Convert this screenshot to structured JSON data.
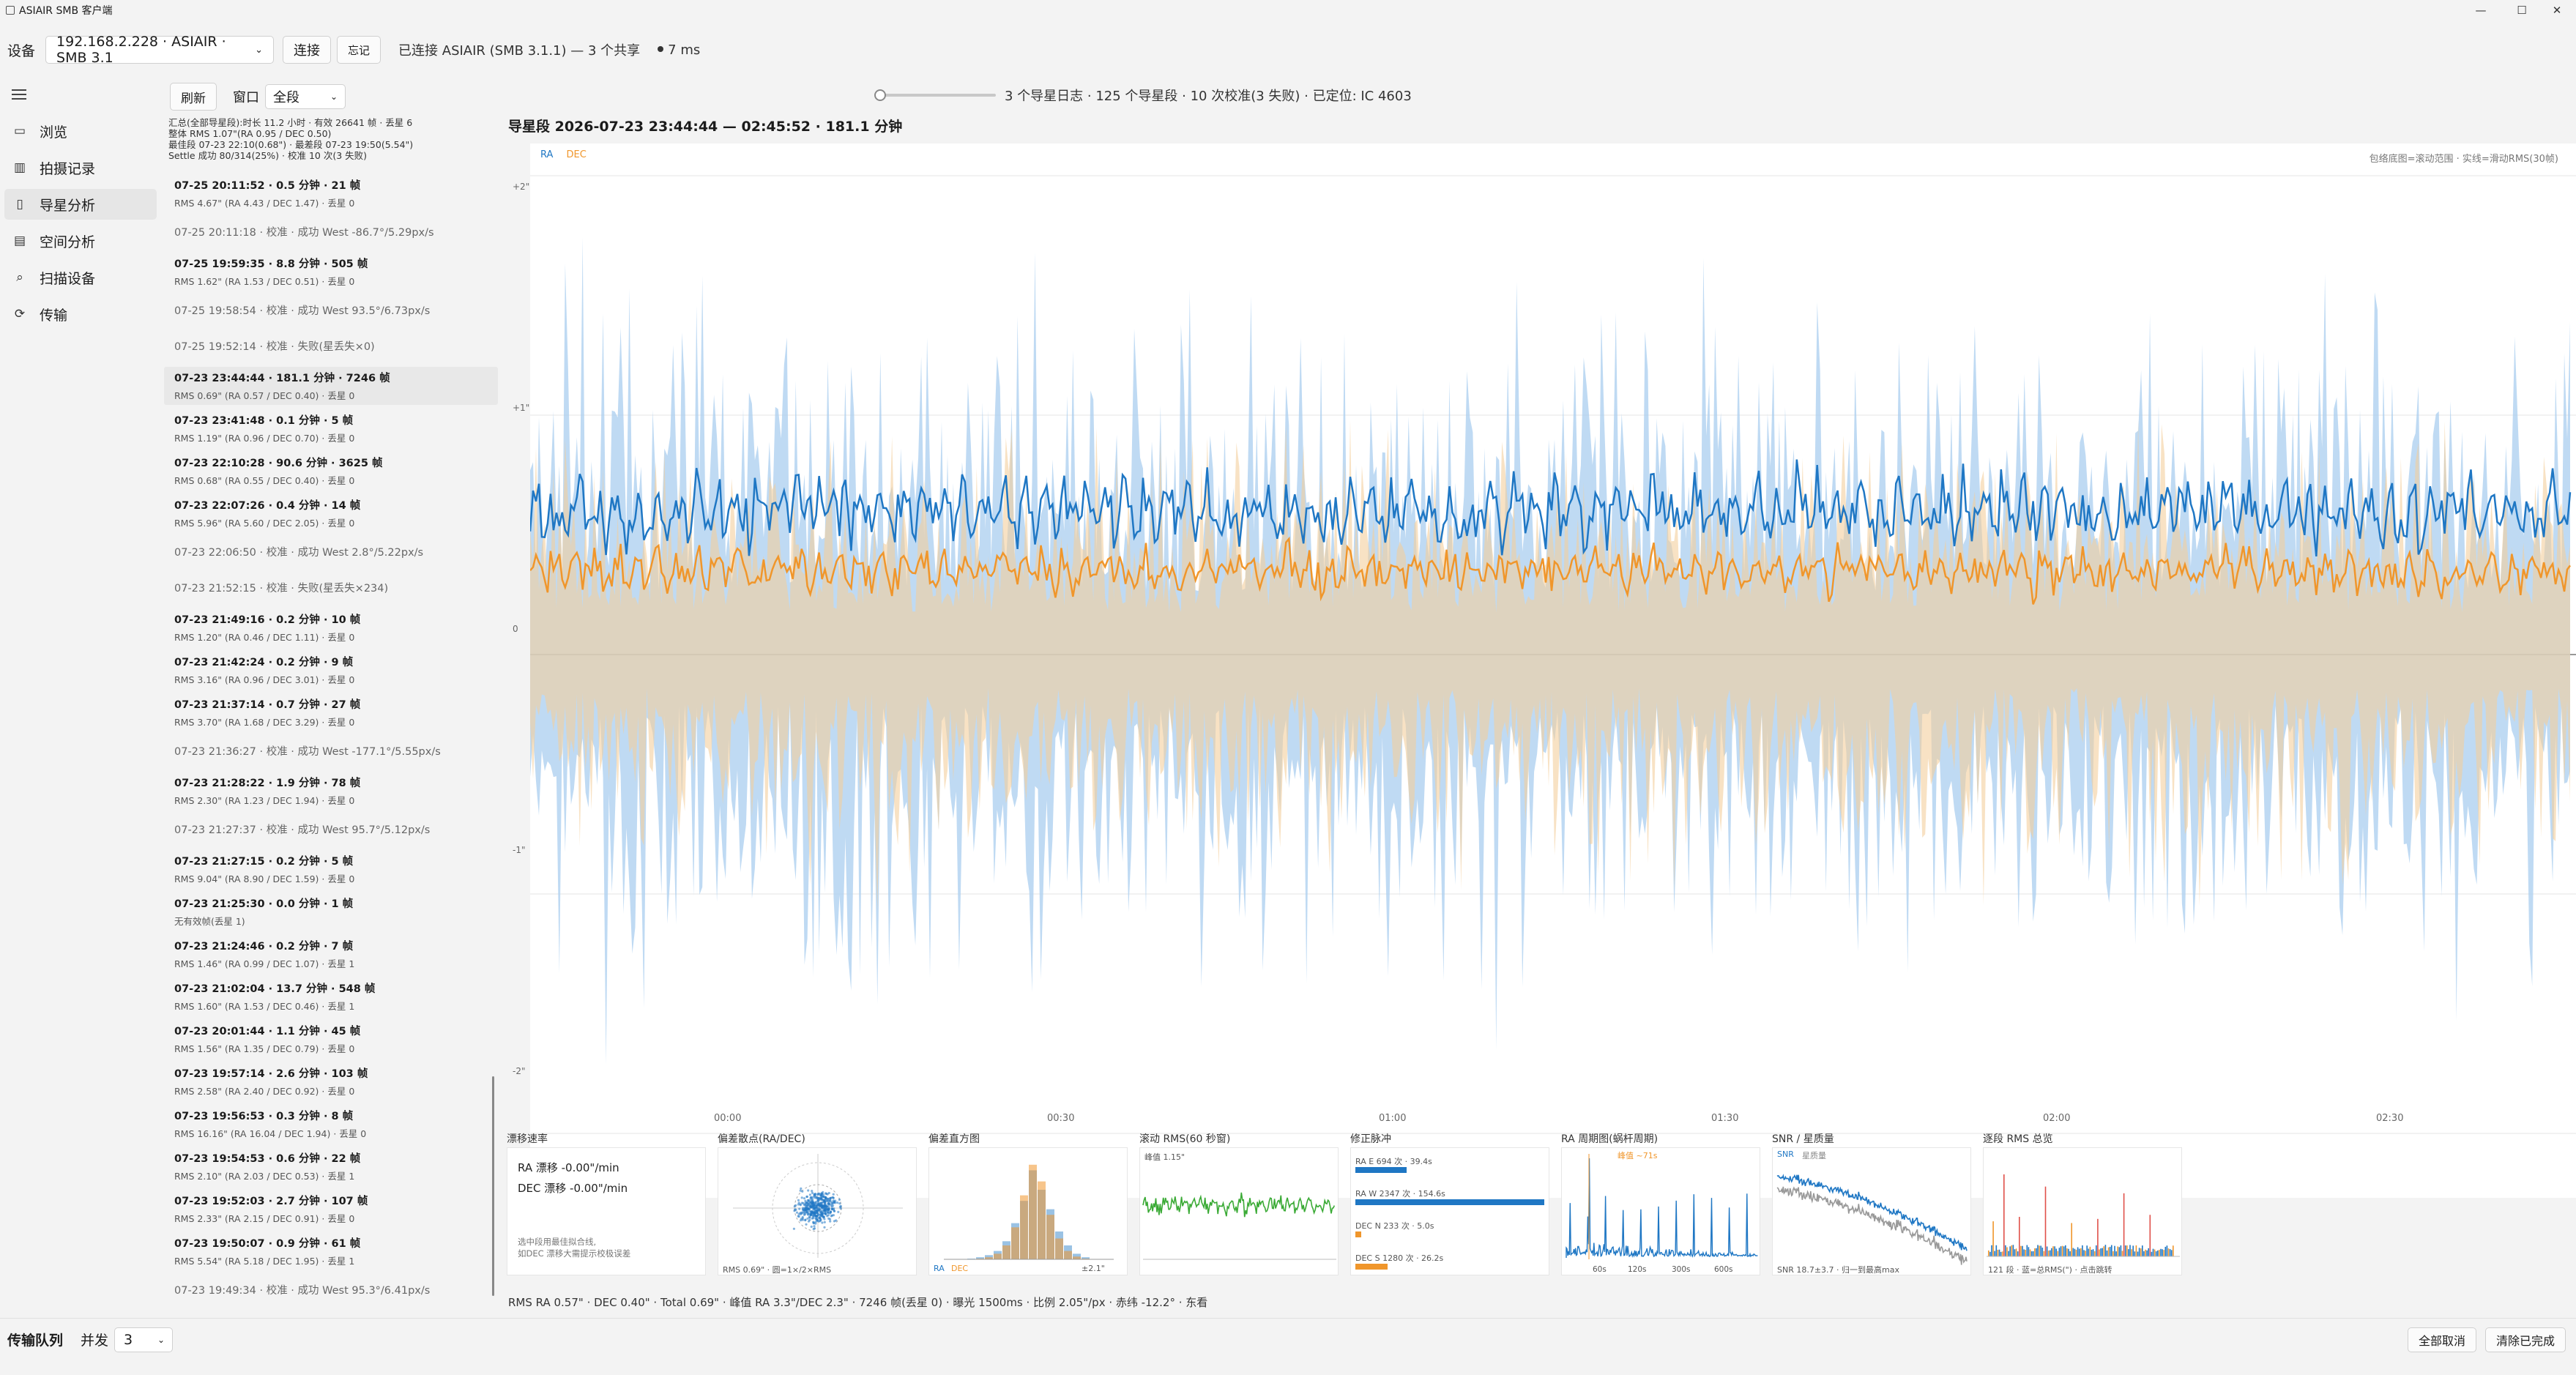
{
  "window": {
    "title": "ASIAIR SMB 客户端",
    "minimize": "—",
    "maximize": "☐",
    "close": "✕"
  },
  "device": {
    "label": "设备",
    "selected": "192.168.2.228 · ASIAIR · SMB 3.1",
    "connect_label": "连接",
    "forget_label": "忘记",
    "status_text": "已连接 ASIAIR (SMB 3.1.1) — 3 个共享",
    "latency": "7 ms"
  },
  "nav": {
    "items": [
      {
        "label": "浏览",
        "icon": "folder-icon"
      },
      {
        "label": "拍摄记录",
        "icon": "chart-bars-icon"
      },
      {
        "label": "导星分析",
        "icon": "guide-icon"
      },
      {
        "label": "空间分析",
        "icon": "database-icon"
      },
      {
        "label": "扫描设备",
        "icon": "search-icon"
      },
      {
        "label": "传输",
        "icon": "sync-icon"
      }
    ],
    "active_index": 2
  },
  "sessions_panel": {
    "refresh_label": "刷新",
    "window_label": "窗口",
    "window_value": "全段",
    "summary": [
      "汇总(全部导星段):时长 11.2 小时 · 有效 26641 帧 · 丢星 6",
      "整体 RMS 1.07\"(RA 0.95 / DEC 0.50)",
      "最佳段 07-23 22:10(0.68\") · 最差段 07-23 19:50(5.54\")",
      "Settle 成功 80/314(25%) · 校准 10 次(3 失败)"
    ],
    "items": [
      {
        "h": "07-25 20:11:52 · 0.5 分钟 · 21 帧",
        "s": "RMS 4.67\" (RA 4.43 / DEC 1.47) · 丢星 0",
        "cal": false
      },
      {
        "h": "07-25 20:11:18 · 校准 · 成功 West -86.7°/5.29px/s",
        "s": "",
        "cal": true
      },
      {
        "h": "07-25 19:59:35 · 8.8 分钟 · 505 帧",
        "s": "RMS 1.62\" (RA 1.53 / DEC 0.51) · 丢星 0",
        "cal": false
      },
      {
        "h": "07-25 19:58:54 · 校准 · 成功 West 93.5°/6.73px/s",
        "s": "",
        "cal": true
      },
      {
        "h": "07-25 19:52:14 · 校准 · 失败(星丢失×0)",
        "s": "",
        "cal": true
      },
      {
        "h": "07-23 23:44:44 · 181.1 分钟 · 7246 帧",
        "s": "RMS 0.69\" (RA 0.57 / DEC 0.40) · 丢星 0",
        "cal": false
      },
      {
        "h": "07-23 23:41:48 · 0.1 分钟 · 5 帧",
        "s": "RMS 1.19\" (RA 0.96 / DEC 0.70) · 丢星 0",
        "cal": false
      },
      {
        "h": "07-23 22:10:28 · 90.6 分钟 · 3625 帧",
        "s": "RMS 0.68\" (RA 0.55 / DEC 0.40) · 丢星 0",
        "cal": false
      },
      {
        "h": "07-23 22:07:26 · 0.4 分钟 · 14 帧",
        "s": "RMS 5.96\" (RA 5.60 / DEC 2.05) · 丢星 0",
        "cal": false
      },
      {
        "h": "07-23 22:06:50 · 校准 · 成功 West 2.8°/5.22px/s",
        "s": "",
        "cal": true
      },
      {
        "h": "07-23 21:52:15 · 校准 · 失败(星丢失×234)",
        "s": "",
        "cal": true
      },
      {
        "h": "07-23 21:49:16 · 0.2 分钟 · 10 帧",
        "s": "RMS 1.20\" (RA 0.46 / DEC 1.11) · 丢星 0",
        "cal": false
      },
      {
        "h": "07-23 21:42:24 · 0.2 分钟 · 9 帧",
        "s": "RMS 3.16\" (RA 0.96 / DEC 3.01) · 丢星 0",
        "cal": false
      },
      {
        "h": "07-23 21:37:14 · 0.7 分钟 · 27 帧",
        "s": "RMS 3.70\" (RA 1.68 / DEC 3.29) · 丢星 0",
        "cal": false
      },
      {
        "h": "07-23 21:36:27 · 校准 · 成功 West -177.1°/5.55px/s",
        "s": "",
        "cal": true
      },
      {
        "h": "07-23 21:28:22 · 1.9 分钟 · 78 帧",
        "s": "RMS 2.30\" (RA 1.23 / DEC 1.94) · 丢星 0",
        "cal": false
      },
      {
        "h": "07-23 21:27:37 · 校准 · 成功 West 95.7°/5.12px/s",
        "s": "",
        "cal": true
      },
      {
        "h": "07-23 21:27:15 · 0.2 分钟 · 5 帧",
        "s": "RMS 9.04\" (RA 8.90 / DEC 1.59) · 丢星 0",
        "cal": false
      },
      {
        "h": "07-23 21:25:30 · 0.0 分钟 · 1 帧",
        "s": "无有效帧(丢星 1)",
        "cal": false
      },
      {
        "h": "07-23 21:24:46 · 0.2 分钟 · 7 帧",
        "s": "RMS 1.46\" (RA 0.99 / DEC 1.07) · 丢星 1",
        "cal": false
      },
      {
        "h": "07-23 21:02:04 · 13.7 分钟 · 548 帧",
        "s": "RMS 1.60\" (RA 1.53 / DEC 0.46) · 丢星 1",
        "cal": false
      },
      {
        "h": "07-23 20:01:44 · 1.1 分钟 · 45 帧",
        "s": "RMS 1.56\" (RA 1.35 / DEC 0.79) · 丢星 0",
        "cal": false
      },
      {
        "h": "07-23 19:57:14 · 2.6 分钟 · 103 帧",
        "s": "RMS 2.58\" (RA 2.40 / DEC 0.92) · 丢星 0",
        "cal": false
      },
      {
        "h": "07-23 19:56:53 · 0.3 分钟 · 8 帧",
        "s": "RMS 16.16\" (RA 16.04 / DEC 1.94) · 丢星 0",
        "cal": false
      },
      {
        "h": "07-23 19:54:53 · 0.6 分钟 · 22 帧",
        "s": "RMS 2.10\" (RA 2.03 / DEC 0.53) · 丢星 1",
        "cal": false
      },
      {
        "h": "07-23 19:52:03 · 2.7 分钟 · 107 帧",
        "s": "RMS 2.33\" (RA 2.15 / DEC 0.91) · 丢星 0",
        "cal": false
      },
      {
        "h": "07-23 19:50:07 · 0.9 分钟 · 61 帧",
        "s": "RMS 5.54\" (RA 5.18 / DEC 1.95) · 丢星 1",
        "cal": false
      },
      {
        "h": "07-23 19:49:34 · 校准 · 成功 West 95.3°/6.41px/s",
        "s": "",
        "cal": true
      }
    ],
    "selected_index": 5
  },
  "main": {
    "progress_text": "3 个导星日志 · 125 个导星段 · 10 次校准(3 失败) · 已定位: IC 4603",
    "title": "导星段 2026-07-23 23:44:44 — 02:45:52 · 181.1 分钟",
    "hint": "包络底图=滚动范围 · 实线=滑动RMS(30帧)",
    "footer": "RMS RA 0.57\" · DEC 0.40\" · Total 0.69\" · 峰值 RA 3.3\"/DEC 2.3\" · 7246 帧(丢星 0) · 曝光 1500ms · 比例 2.05\"/px · 赤纬 -12.2° · 东看"
  },
  "chart_data": {
    "type": "line",
    "legend": [
      "RA",
      "DEC"
    ],
    "colors": {
      "RA": "#1f77c4",
      "DEC": "#f0962b",
      "RA_env": "#a9cdef",
      "DEC_env": "#f4cf9c"
    },
    "ylim": [
      -2,
      2
    ],
    "yticks": [
      "+2\"",
      "+1\"",
      "0",
      "-1\"",
      "-2\""
    ],
    "xticks": [
      "00:00",
      "00:30",
      "01:00",
      "01:30",
      "02:00",
      "02:30"
    ],
    "ra_rms_level": 0.6,
    "dec_rms_level": 0.35
  },
  "panels": {
    "drift": {
      "title": "漂移速率",
      "ra": "RA 漂移 -0.00\"/min",
      "dec": "DEC 漂移 -0.00\"/min",
      "note1": "选中段用最佳拟合线,",
      "note2": "如DEC 漂移大需提示校极误差"
    },
    "scatter": {
      "title": "偏差散点(RA/DEC)",
      "caption": "RMS 0.69\" · 圆=1×/2×RMS"
    },
    "hist": {
      "title": "偏差直方图",
      "ra": "RA",
      "dec": "DEC",
      "range": "±2.1\""
    },
    "rolling": {
      "title": "滚动 RMS(60 秒窗)",
      "peak": "峰值 1.15\""
    },
    "pulse": {
      "title": "修正脉冲",
      "rows": [
        {
          "label": "RA E  694 次 · 39.4s",
          "frac": 0.27,
          "color": "#1f77c4"
        },
        {
          "label": "RA W  2347 次 · 154.6s",
          "frac": 1.0,
          "color": "#1f77c4"
        },
        {
          "label": "DEC N  233 次 · 5.0s",
          "frac": 0.03,
          "color": "#f0962b"
        },
        {
          "label": "DEC S  1280 次 · 26.2s",
          "frac": 0.17,
          "color": "#f0962b"
        }
      ]
    },
    "period": {
      "title": "RA 周期图(蜗杆周期)",
      "peak": "峰值 ~71s",
      "ticks": [
        "60s",
        "120s",
        "300s",
        "600s"
      ]
    },
    "snr": {
      "title": "SNR / 星质量",
      "snr": "SNR",
      "mass": "星质量",
      "caption": "SNR 18.7±3.7 · 归一到最高max"
    },
    "segrms": {
      "title": "逐段 RMS 总览",
      "caption": "121 段 · 蓝=总RMS(\") · 点击跳转"
    }
  },
  "bottom": {
    "queue_label": "传输队列",
    "concurrency_label": "并发",
    "concurrency_value": "3",
    "cancel_all": "全部取消",
    "clear_done": "清除已完成"
  }
}
